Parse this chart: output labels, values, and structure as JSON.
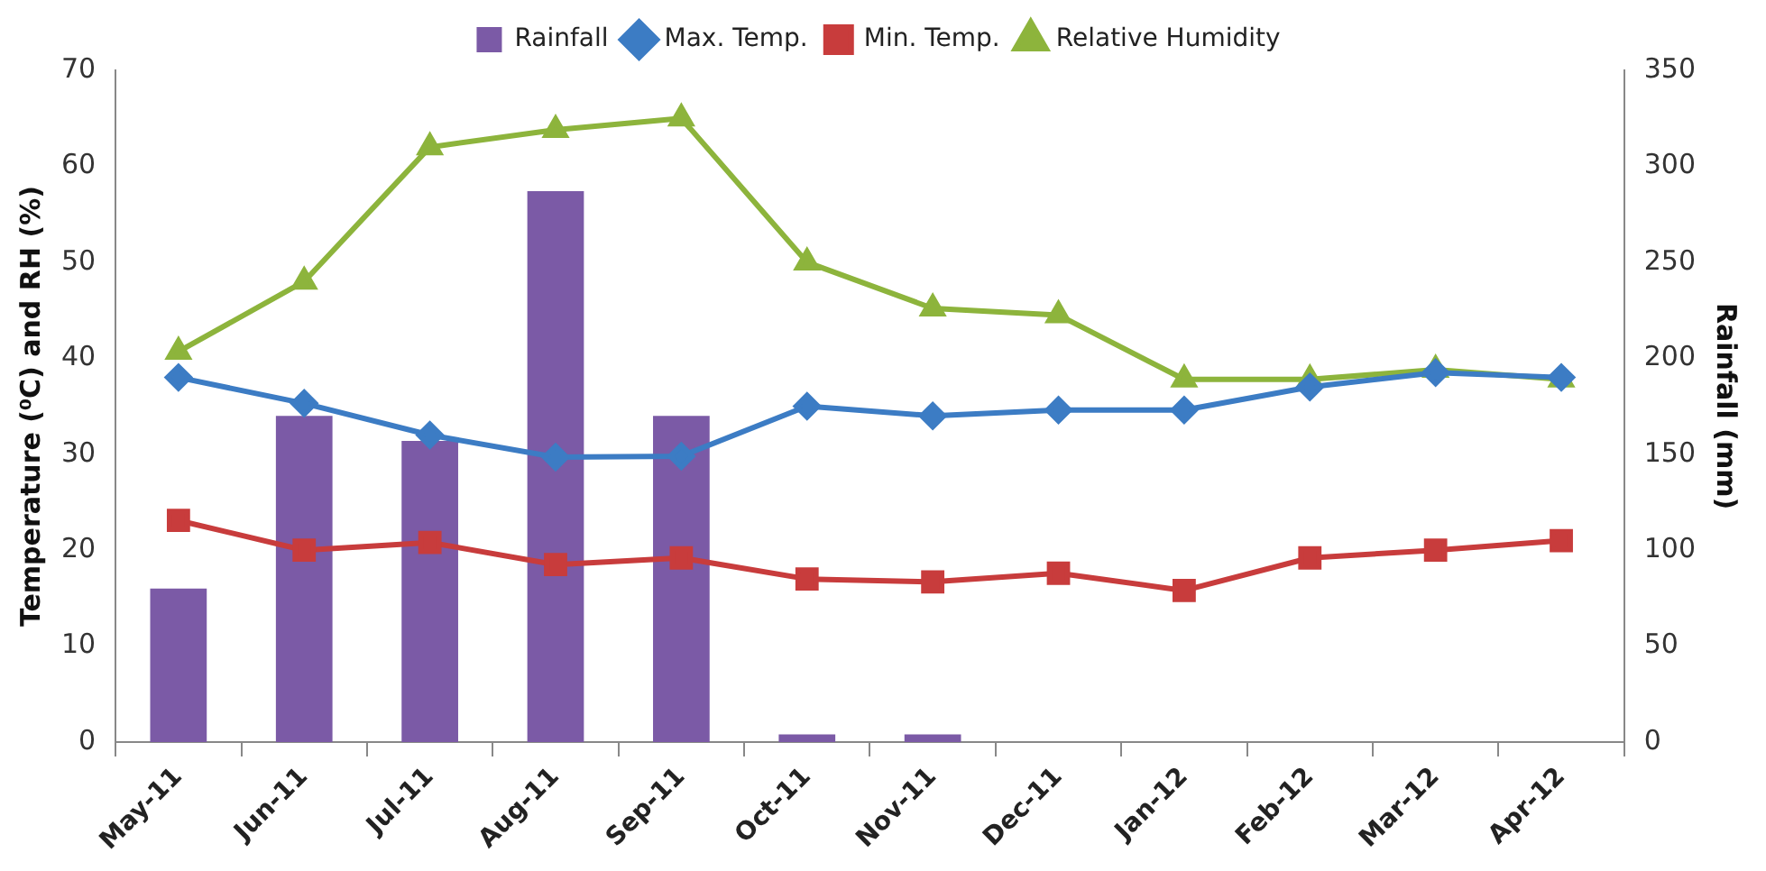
{
  "chart_data": {
    "type": "line",
    "categories": [
      "May-11",
      "Jun-11",
      "Jul-11",
      "Aug-11",
      "Sep-11",
      "Oct-11",
      "Nov-11",
      "Dec-11",
      "Jan-12",
      "Feb-12",
      "Mar-12",
      "Apr-12"
    ],
    "series": [
      {
        "name": "Rainfall",
        "type": "bar",
        "axis": "y2",
        "color": "#7b5aa6",
        "values": [
          80,
          170,
          157,
          287,
          170,
          4,
          4,
          0,
          0,
          0,
          0,
          0
        ]
      },
      {
        "name": "Max. Temp.",
        "marker": "diamond",
        "color": "#3c7cc4",
        "values": [
          38,
          35.3,
          32,
          29.7,
          29.8,
          35,
          34,
          34.6,
          34.6,
          37,
          38.5,
          38
        ]
      },
      {
        "name": "Min. Temp.",
        "marker": "square",
        "color": "#c83c3c",
        "values": [
          23.1,
          20,
          20.8,
          18.5,
          19.2,
          17,
          16.7,
          17.6,
          15.8,
          19.2,
          20,
          21
        ]
      },
      {
        "name": "Relative Humidity",
        "marker": "triangle",
        "color": "#8db43c",
        "values": [
          40.7,
          48,
          62,
          63.8,
          65,
          50,
          45.2,
          44.5,
          37.8,
          37.8,
          38.8,
          37.8
        ]
      }
    ],
    "ylabel": "Temperature (⁰C) and RH (%)",
    "y2label": "Rainfall (mm)",
    "ylim": [
      0,
      70
    ],
    "yticks": [
      0,
      10,
      20,
      30,
      40,
      50,
      60,
      70
    ],
    "y2lim": [
      0,
      350
    ],
    "y2ticks": [
      0,
      50,
      100,
      150,
      200,
      250,
      300,
      350
    ],
    "grid": false,
    "legend": "top",
    "line_style": "solid"
  }
}
